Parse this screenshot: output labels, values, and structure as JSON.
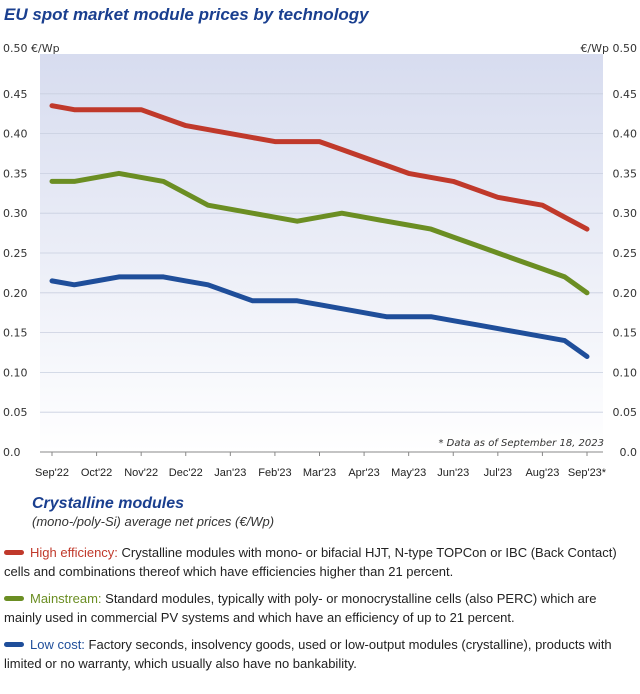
{
  "title": "EU spot market module prices by technology",
  "chart_data": {
    "type": "line",
    "title": "EU spot market module prices by technology",
    "ylabel_left": "0.50 €/Wp",
    "ylabel_right": "€/Wp 0.50",
    "ylim": [
      0.0,
      0.5
    ],
    "yticks": [
      "0.0",
      "0.05",
      "0.10",
      "0.15",
      "0.20",
      "0.25",
      "0.30",
      "0.35",
      "0.40",
      "0.45"
    ],
    "ytick_values": [
      0.0,
      0.05,
      0.1,
      0.15,
      0.2,
      0.25,
      0.3,
      0.35,
      0.4,
      0.45
    ],
    "categories": [
      "Sep'22",
      "Oct'22",
      "Nov'22",
      "Dec'22",
      "Jan'23",
      "Feb'23",
      "Mar'23",
      "Apr'23",
      "May'23",
      "Jun'23",
      "Jul'23",
      "Aug'23",
      "Sep'23*"
    ],
    "x": [
      0,
      0.5,
      1,
      1.5,
      2,
      2.5,
      3,
      3.5,
      4,
      4.5,
      5,
      5.5,
      6,
      6.5,
      7,
      7.5,
      8,
      8.5,
      9,
      9.5,
      10,
      10.5,
      11,
      11.5,
      12
    ],
    "series": [
      {
        "name": "High efficiency",
        "color": "#c0392b",
        "values": [
          0.435,
          0.43,
          0.43,
          0.43,
          0.43,
          0.42,
          0.41,
          0.405,
          0.4,
          0.395,
          0.39,
          0.39,
          0.39,
          0.38,
          0.37,
          0.36,
          0.35,
          0.345,
          0.34,
          0.33,
          0.32,
          0.315,
          0.31,
          0.295,
          0.28
        ]
      },
      {
        "name": "Mainstream",
        "color": "#6b8e23",
        "values": [
          0.34,
          0.34,
          0.345,
          0.35,
          0.345,
          0.34,
          0.325,
          0.31,
          0.305,
          0.3,
          0.295,
          0.29,
          0.295,
          0.3,
          0.295,
          0.29,
          0.285,
          0.28,
          0.27,
          0.26,
          0.25,
          0.24,
          0.23,
          0.22,
          0.2
        ]
      },
      {
        "name": "Low cost",
        "color": "#1f4e9a",
        "values": [
          0.215,
          0.21,
          0.215,
          0.22,
          0.22,
          0.22,
          0.215,
          0.21,
          0.2,
          0.19,
          0.19,
          0.19,
          0.185,
          0.18,
          0.175,
          0.17,
          0.17,
          0.17,
          0.165,
          0.16,
          0.155,
          0.15,
          0.145,
          0.14,
          0.12
        ]
      }
    ],
    "note": "* Data as of September 18, 2023",
    "grid": true,
    "legend": "bottom"
  },
  "legend": {
    "title": "Crystalline modules",
    "subtitle": "(mono-/poly-Si) average net prices (€/Wp)",
    "items": [
      {
        "name": "High efficiency:",
        "color": "#c0392b",
        "text": " Crystalline modules with mono- or bifacial HJT, N-type TOPCon or IBC (Back Contact) cells and combinations thereof which have efficiencies higher than 21 percent."
      },
      {
        "name": "Mainstream:",
        "color": "#6b8e23",
        "text": " Standard modules, typically with poly- or monocrystalline cells (also PERC) which are mainly used in commercial PV systems and which have an efficiency of up to 21 percent."
      },
      {
        "name": "Low cost:",
        "color": "#1f4e9a",
        "text": " Factory seconds, insolvency goods, used or low-output modules (crystalline), products with limited or no warranty, which usually also have no bankability."
      }
    ]
  }
}
